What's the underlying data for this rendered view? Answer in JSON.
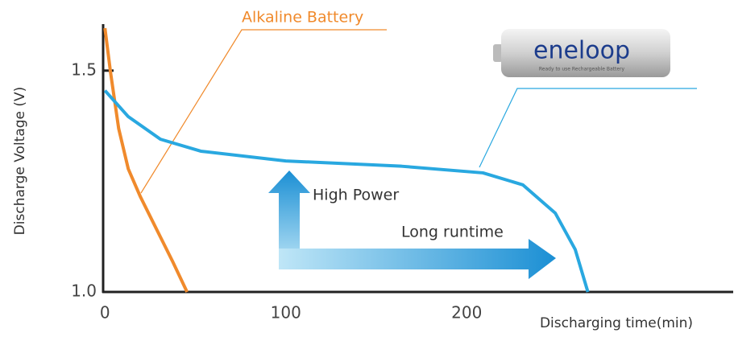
{
  "chart_data": {
    "type": "line",
    "x_label": "Discharging time(min)",
    "y_label": "Discharge Voltage (V)",
    "xlim": [
      -1,
      346
    ],
    "ylim": [
      1.0,
      1.605
    ],
    "xticks": [
      0,
      100,
      200
    ],
    "yticks": [
      {
        "value": 1,
        "label": "1.0"
      },
      1.5
    ],
    "series": [
      {
        "name": "Alkaline Battery",
        "color": "#f08a2c",
        "x": [
          0,
          3.1,
          7.6,
          12.9,
          19.6,
          28.5,
          37.4,
          45.4
        ],
        "values": [
          1.596,
          1.496,
          1.369,
          1.278,
          1.215,
          1.142,
          1.069,
          1.0
        ]
      },
      {
        "name": "eneloop",
        "color": "#29a8e0",
        "x": [
          0,
          12.9,
          30.7,
          53,
          100,
          164,
          209,
          231,
          249,
          260,
          267
        ],
        "values": [
          1.455,
          1.396,
          1.345,
          1.318,
          1.296,
          1.284,
          1.269,
          1.242,
          1.178,
          1.096,
          1.0
        ]
      }
    ],
    "logo_subtitle": "Ready to use Rechargeable Battery",
    "annotations": [
      "High Power",
      "Long runtime"
    ]
  }
}
